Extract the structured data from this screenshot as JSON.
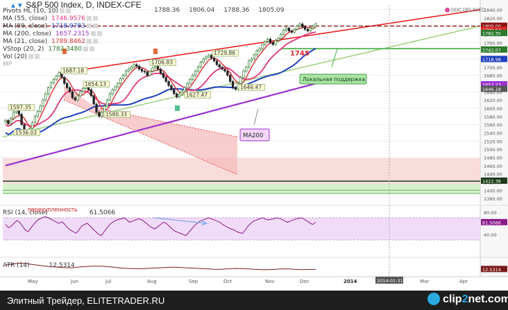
{
  "title": {
    "arrow": "▲▼",
    "text": "S&P 500 Index, D, INDEX-CFE",
    "ohlc": [
      "1788.36",
      "1806.04",
      "1788.36",
      "1805.09"
    ],
    "badge": "DDC DELAYED"
  },
  "legend": [
    {
      "label": "Pivots HL (10, 10)",
      "value": ""
    },
    {
      "label": "MA (55, close)",
      "value": "1746.9576"
    },
    {
      "label": "MA (89, close)",
      "value": "1718.9783"
    },
    {
      "label": "MA (200, close)",
      "value": "1657.2315"
    },
    {
      "label": "MA (21, close)",
      "value": "1789.8462"
    },
    {
      "label": "VStop (20, 2)",
      "value": "1782.3480"
    },
    {
      "label": "Vol (20)",
      "value": ""
    },
    {
      "label": "MP",
      "value": ""
    }
  ],
  "rsi": {
    "label": "RSI (14, close)",
    "value": "61.5066",
    "note": "перекупленность"
  },
  "atr": {
    "label": "ATR (14)",
    "value": "12.5314"
  },
  "annotations": {
    "support_label": "Локальная поддержка",
    "ma200_label": "MA200",
    "level_1745": "1745"
  },
  "footer": {
    "source": "Элитный Трейдер, ELITETRADER.RU",
    "logo_a": "clip",
    "logo_b": "2",
    "logo_c": "net.com"
  },
  "colors": {
    "candle_up": "#2c7a2c",
    "candle_down": "#222222",
    "ma55": "#e0347a",
    "ma89": "#1f3fbf",
    "ma200": "#9b2fd0",
    "ma21": "#d82a2a",
    "trend_red": "#e82020",
    "trend_green": "#9fd27f",
    "support_green": "#5cb85c",
    "channel_fill": "#f6bcbc",
    "zone_fill": "#f7d3d3",
    "rsi_band": "#f0dcf8",
    "rsi_line": "#8a1a8a",
    "atr_line": "#7a1a1a",
    "dashed_level": "#8b1010"
  },
  "chart_data": [
    {
      "type": "candlestick",
      "title": "S&P 500 Index, D, INDEX-CFE",
      "y_axis_ticks": [
        1840,
        1820,
        1800,
        1780,
        1760,
        1740,
        1720,
        1700,
        1680,
        1660,
        1640,
        1620,
        1600,
        1580,
        1560,
        1540,
        1520,
        1500,
        1480,
        1460,
        1440,
        1420,
        1400,
        1380
      ],
      "x_axis_ticks": [
        "May",
        "Jun",
        "Jul",
        "Aug",
        "Sep",
        "Oct",
        "Nov",
        "Dec",
        "2014",
        "Feb",
        "Mar",
        "Apr"
      ],
      "x_cursor_label": "2014-01-31",
      "ylim": [
        1370,
        1850
      ],
      "price_labels": [
        {
          "text": "1800.00"
        },
        {
          "text": "1789.84"
        },
        {
          "text": "1782.35"
        },
        {
          "text": "1742.07"
        },
        {
          "text": "1718.98"
        },
        {
          "text": "1657.23"
        },
        {
          "text": "1646.18"
        },
        {
          "text": "1422.38"
        }
      ],
      "pivots": [
        {
          "text": "1597.35",
          "value": 1597.35
        },
        {
          "text": "1536.03",
          "value": 1536.03
        },
        {
          "text": "1687.18",
          "value": 1687.18
        },
        {
          "text": "1654.13",
          "value": 1654.13
        },
        {
          "text": "1580.33",
          "value": 1580.33
        },
        {
          "text": "1706.83",
          "value": 1706.83
        },
        {
          "text": "1627.47",
          "value": 1627.47
        },
        {
          "text": "1729.86",
          "value": 1729.86
        },
        {
          "text": "1646.47",
          "value": 1646.47
        }
      ],
      "close": [
        1570,
        1562,
        1575,
        1590,
        1597,
        1585,
        1560,
        1545,
        1536,
        1550,
        1565,
        1580,
        1592,
        1605,
        1620,
        1635,
        1650,
        1662,
        1670,
        1678,
        1687,
        1675,
        1660,
        1650,
        1640,
        1625,
        1620,
        1630,
        1640,
        1648,
        1654,
        1645,
        1630,
        1610,
        1590,
        1580,
        1590,
        1605,
        1620,
        1635,
        1645,
        1652,
        1660,
        1672,
        1680,
        1690,
        1695,
        1700,
        1706,
        1702,
        1695,
        1690,
        1688,
        1680,
        1690,
        1698,
        1702,
        1695,
        1685,
        1675,
        1665,
        1655,
        1645,
        1635,
        1627,
        1634,
        1642,
        1650,
        1660,
        1670,
        1680,
        1690,
        1700,
        1712,
        1720,
        1725,
        1729,
        1722,
        1715,
        1706,
        1700,
        1695,
        1690,
        1680,
        1665,
        1650,
        1646,
        1660,
        1675,
        1690,
        1700,
        1715,
        1720,
        1730,
        1740,
        1745,
        1755,
        1762,
        1768,
        1760,
        1755,
        1765,
        1770,
        1780,
        1790,
        1795,
        1788,
        1785,
        1792,
        1800,
        1805,
        1798,
        1792,
        1788,
        1795,
        1800,
        1805
      ]
    },
    {
      "type": "line",
      "title": "RSI (14, close)",
      "y_axis_ticks": [
        80,
        61.5066,
        40
      ],
      "ylim": [
        20,
        90
      ],
      "values": [
        58,
        52,
        55,
        60,
        65,
        62,
        55,
        48,
        45,
        52,
        58,
        64,
        68,
        70,
        72,
        70,
        68,
        65,
        62,
        60,
        63,
        58,
        52,
        48,
        45,
        42,
        48,
        55,
        58,
        60,
        55,
        50,
        45,
        40,
        38,
        45,
        52,
        58,
        62,
        65,
        67,
        68,
        70,
        66,
        62,
        64,
        66,
        68,
        67,
        64,
        60,
        55,
        52,
        50,
        54,
        58,
        62,
        60,
        55,
        50,
        46,
        44,
        42,
        40,
        38,
        44,
        50,
        56,
        60,
        64,
        66,
        68,
        70,
        68,
        66,
        64,
        62,
        58,
        55,
        52,
        50,
        48,
        45,
        43,
        42,
        48,
        55,
        60,
        64,
        66,
        68,
        70,
        68,
        66,
        67,
        68,
        70,
        69,
        67,
        64,
        62,
        64,
        66,
        68,
        69,
        70,
        67,
        64,
        60,
        58,
        62
      ]
    },
    {
      "type": "line",
      "title": "ATR (14)",
      "y_axis_ticks": [
        12.5314
      ],
      "ylim": [
        5,
        25
      ],
      "values": [
        18,
        18.5,
        19,
        19.5,
        20,
        20.2,
        20,
        19.5,
        19,
        18.5,
        18,
        17.5,
        17,
        16.5,
        16,
        15.8,
        15.5,
        15.2,
        15,
        14.8,
        14.5,
        14.5,
        14.6,
        15,
        15.4,
        15.8,
        16,
        16.2,
        16.4,
        16.5,
        16.6,
        16.5,
        16.2,
        16,
        15.6,
        15.2,
        14.8,
        14.4,
        14,
        13.8,
        13.6,
        13.5,
        13.4,
        13.3,
        13.2,
        13.4,
        13.6,
        13.8,
        14,
        14.2,
        14.4,
        14.6,
        14.8,
        15,
        15.2,
        15.2,
        15,
        14.8,
        14.6,
        14.4,
        14.2,
        14,
        13.8,
        13.6,
        13.4,
        13.2,
        13,
        12.8,
        12.6,
        12.5,
        12.6,
        12.8,
        13,
        13.2,
        13.4,
        13.6,
        13.5,
        13.4,
        13.2,
        13,
        12.8,
        12.6,
        12.4,
        12.2,
        12,
        12,
        12.2,
        12.4,
        12.6,
        12.8,
        13,
        13.1,
        13,
        12.8,
        12.6,
        12.4,
        12.2,
        12.2,
        12.3,
        12.4,
        12.5,
        12.5
      ]
    }
  ]
}
